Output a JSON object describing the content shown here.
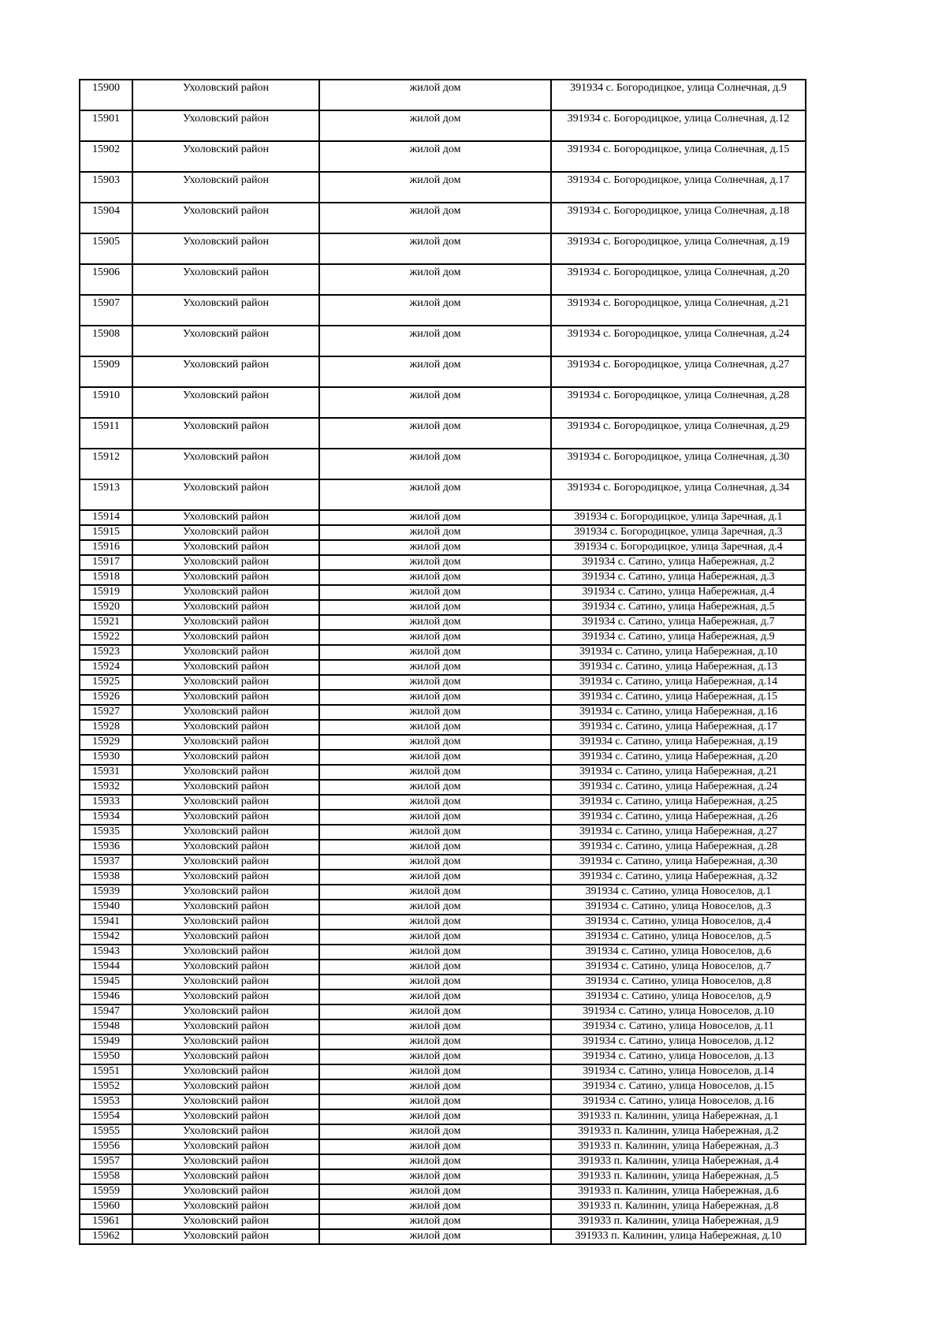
{
  "page": {
    "background_color": "#ffffff",
    "text_color": "#000000",
    "border_color": "#000000"
  },
  "table": {
    "tall_row_count": 14,
    "rows": [
      [
        "15900",
        "Ухоловский район",
        "жилой дом",
        "391934 с. Богородицкое, улица Солнечная, д.9"
      ],
      [
        "15901",
        "Ухоловский район",
        "жилой дом",
        "391934 с. Богородицкое, улица Солнечная, д.12"
      ],
      [
        "15902",
        "Ухоловский район",
        "жилой дом",
        "391934 с. Богородицкое, улица Солнечная, д.15"
      ],
      [
        "15903",
        "Ухоловский район",
        "жилой дом",
        "391934 с. Богородицкое, улица Солнечная, д.17"
      ],
      [
        "15904",
        "Ухоловский район",
        "жилой дом",
        "391934 с. Богородицкое, улица Солнечная, д.18"
      ],
      [
        "15905",
        "Ухоловский район",
        "жилой дом",
        "391934 с. Богородицкое, улица Солнечная, д.19"
      ],
      [
        "15906",
        "Ухоловский район",
        "жилой дом",
        "391934 с. Богородицкое, улица Солнечная, д.20"
      ],
      [
        "15907",
        "Ухоловский район",
        "жилой дом",
        "391934 с. Богородицкое, улица Солнечная, д.21"
      ],
      [
        "15908",
        "Ухоловский район",
        "жилой дом",
        "391934 с. Богородицкое, улица Солнечная, д.24"
      ],
      [
        "15909",
        "Ухоловский район",
        "жилой дом",
        "391934 с. Богородицкое, улица Солнечная, д.27"
      ],
      [
        "15910",
        "Ухоловский район",
        "жилой дом",
        "391934 с. Богородицкое, улица Солнечная, д.28"
      ],
      [
        "15911",
        "Ухоловский район",
        "жилой дом",
        "391934 с. Богородицкое, улица Солнечная, д.29"
      ],
      [
        "15912",
        "Ухоловский район",
        "жилой дом",
        "391934 с. Богородицкое, улица Солнечная, д.30"
      ],
      [
        "15913",
        "Ухоловский район",
        "жилой дом",
        "391934 с. Богородицкое, улица Солнечная, д.34"
      ],
      [
        "15914",
        "Ухоловский район",
        "жилой дом",
        "391934 с. Богородицкое, улица Заречная, д.1"
      ],
      [
        "15915",
        "Ухоловский район",
        "жилой дом",
        "391934 с. Богородицкое, улица Заречная, д.3"
      ],
      [
        "15916",
        "Ухоловский район",
        "жилой дом",
        "391934 с. Богородицкое, улица Заречная, д.4"
      ],
      [
        "15917",
        "Ухоловский район",
        "жилой дом",
        "391934 с. Сатино, улица Набережная, д.2"
      ],
      [
        "15918",
        "Ухоловский район",
        "жилой дом",
        "391934 с. Сатино, улица Набережная, д.3"
      ],
      [
        "15919",
        "Ухоловский район",
        "жилой дом",
        "391934 с. Сатино, улица Набережная, д.4"
      ],
      [
        "15920",
        "Ухоловский район",
        "жилой дом",
        "391934 с. Сатино, улица Набережная, д.5"
      ],
      [
        "15921",
        "Ухоловский район",
        "жилой дом",
        "391934 с. Сатино, улица Набережная, д.7"
      ],
      [
        "15922",
        "Ухоловский район",
        "жилой дом",
        "391934 с. Сатино, улица Набережная, д.9"
      ],
      [
        "15923",
        "Ухоловский район",
        "жилой дом",
        "391934 с. Сатино, улица Набережная, д.10"
      ],
      [
        "15924",
        "Ухоловский район",
        "жилой дом",
        "391934 с. Сатино, улица Набережная, д.13"
      ],
      [
        "15925",
        "Ухоловский район",
        "жилой дом",
        "391934 с. Сатино, улица Набережная, д.14"
      ],
      [
        "15926",
        "Ухоловский район",
        "жилой дом",
        "391934 с. Сатино, улица Набережная, д.15"
      ],
      [
        "15927",
        "Ухоловский район",
        "жилой дом",
        "391934 с. Сатино, улица Набережная, д.16"
      ],
      [
        "15928",
        "Ухоловский район",
        "жилой дом",
        "391934 с. Сатино, улица Набережная, д.17"
      ],
      [
        "15929",
        "Ухоловский район",
        "жилой дом",
        "391934 с. Сатино, улица Набережная, д.19"
      ],
      [
        "15930",
        "Ухоловский район",
        "жилой дом",
        "391934 с. Сатино, улица Набережная, д.20"
      ],
      [
        "15931",
        "Ухоловский район",
        "жилой дом",
        "391934 с. Сатино, улица Набережная, д.21"
      ],
      [
        "15932",
        "Ухоловский район",
        "жилой дом",
        "391934 с. Сатино, улица Набережная, д.24"
      ],
      [
        "15933",
        "Ухоловский район",
        "жилой дом",
        "391934 с. Сатино, улица Набережная, д.25"
      ],
      [
        "15934",
        "Ухоловский район",
        "жилой дом",
        "391934 с. Сатино, улица Набережная, д.26"
      ],
      [
        "15935",
        "Ухоловский район",
        "жилой дом",
        "391934 с. Сатино, улица Набережная, д.27"
      ],
      [
        "15936",
        "Ухоловский район",
        "жилой дом",
        "391934 с. Сатино, улица Набережная, д.28"
      ],
      [
        "15937",
        "Ухоловский район",
        "жилой дом",
        "391934 с. Сатино, улица Набережная, д.30"
      ],
      [
        "15938",
        "Ухоловский район",
        "жилой дом",
        "391934 с. Сатино, улица Набережная, д.32"
      ],
      [
        "15939",
        "Ухоловский район",
        "жилой дом",
        "391934 с. Сатино, улица Новоселов, д.1"
      ],
      [
        "15940",
        "Ухоловский район",
        "жилой дом",
        "391934 с. Сатино, улица Новоселов, д.3"
      ],
      [
        "15941",
        "Ухоловский район",
        "жилой дом",
        "391934 с. Сатино, улица Новоселов, д.4"
      ],
      [
        "15942",
        "Ухоловский район",
        "жилой дом",
        "391934 с. Сатино, улица Новоселов, д.5"
      ],
      [
        "15943",
        "Ухоловский район",
        "жилой дом",
        "391934 с. Сатино, улица Новоселов, д.6"
      ],
      [
        "15944",
        "Ухоловский район",
        "жилой дом",
        "391934 с. Сатино, улица Новоселов, д.7"
      ],
      [
        "15945",
        "Ухоловский район",
        "жилой дом",
        "391934 с. Сатино, улица Новоселов, д.8"
      ],
      [
        "15946",
        "Ухоловский район",
        "жилой дом",
        "391934 с. Сатино, улица Новоселов, д.9"
      ],
      [
        "15947",
        "Ухоловский район",
        "жилой дом",
        "391934 с. Сатино, улица Новоселов, д.10"
      ],
      [
        "15948",
        "Ухоловский район",
        "жилой дом",
        "391934 с. Сатино, улица Новоселов, д.11"
      ],
      [
        "15949",
        "Ухоловский район",
        "жилой дом",
        "391934 с. Сатино, улица Новоселов, д.12"
      ],
      [
        "15950",
        "Ухоловский район",
        "жилой дом",
        "391934 с. Сатино, улица Новоселов, д.13"
      ],
      [
        "15951",
        "Ухоловский район",
        "жилой дом",
        "391934 с. Сатино, улица Новоселов, д.14"
      ],
      [
        "15952",
        "Ухоловский район",
        "жилой дом",
        "391934 с. Сатино, улица Новоселов, д.15"
      ],
      [
        "15953",
        "Ухоловский район",
        "жилой дом",
        "391934 с. Сатино, улица Новоселов, д.16"
      ],
      [
        "15954",
        "Ухоловский район",
        "жилой дом",
        "391933 п. Калинин, улица Набережная, д.1"
      ],
      [
        "15955",
        "Ухоловский район",
        "жилой дом",
        "391933 п. Калинин, улица Набережная, д.2"
      ],
      [
        "15956",
        "Ухоловский район",
        "жилой дом",
        "391933 п. Калинин, улица Набережная, д.3"
      ],
      [
        "15957",
        "Ухоловский район",
        "жилой дом",
        "391933 п. Калинин, улица Набережная, д.4"
      ],
      [
        "15958",
        "Ухоловский район",
        "жилой дом",
        "391933 п. Калинин, улица Набережная, д.5"
      ],
      [
        "15959",
        "Ухоловский район",
        "жилой дом",
        "391933 п. Калинин, улица Набережная, д.6"
      ],
      [
        "15960",
        "Ухоловский район",
        "жилой дом",
        "391933 п. Калинин, улица Набережная, д.8"
      ],
      [
        "15961",
        "Ухоловский район",
        "жилой дом",
        "391933 п. Калинин, улица Набережная, д.9"
      ],
      [
        "15962",
        "Ухоловский район",
        "жилой дом",
        "391933 п. Калинин, улица Набережная, д.10"
      ]
    ]
  }
}
